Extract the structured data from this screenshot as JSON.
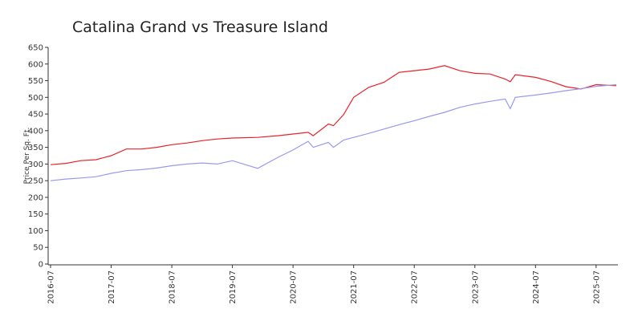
{
  "chart_data": {
    "type": "line",
    "title": "Catalina Grand vs Treasure Island",
    "ylabel": "Price Per Sq. Ft.",
    "x": [
      "2016-07",
      "2016-10",
      "2017-01",
      "2017-04",
      "2017-07",
      "2017-10",
      "2018-01",
      "2018-04",
      "2018-07",
      "2018-10",
      "2019-01",
      "2019-04",
      "2019-07",
      "2019-12",
      "2020-04",
      "2020-07",
      "2020-10",
      "2020-11",
      "2021-02",
      "2021-03",
      "2021-05",
      "2021-07",
      "2021-10",
      "2022-01",
      "2022-04",
      "2022-07",
      "2022-10",
      "2023-01",
      "2023-04",
      "2023-07",
      "2023-10",
      "2024-01",
      "2024-02",
      "2024-03",
      "2024-07",
      "2024-10",
      "2025-01",
      "2025-04",
      "2025-07",
      "2025-11"
    ],
    "series": [
      {
        "color": "#e8222a",
        "values": [
          298,
          302,
          310,
          313,
          325,
          345,
          345,
          350,
          358,
          363,
          370,
          375,
          378,
          380,
          385,
          390,
          395,
          385,
          420,
          415,
          448,
          500,
          530,
          545,
          575,
          580,
          585,
          595,
          580,
          572,
          570,
          555,
          547,
          568,
          560,
          548,
          532,
          525,
          538,
          535
        ]
      },
      {
        "color": "#9999ee",
        "values": [
          250,
          255,
          258,
          262,
          272,
          280,
          283,
          288,
          295,
          300,
          303,
          300,
          310,
          287,
          320,
          342,
          368,
          350,
          365,
          350,
          372,
          380,
          392,
          405,
          418,
          430,
          443,
          455,
          470,
          480,
          488,
          495,
          466,
          500,
          507,
          513,
          520,
          526,
          533,
          538
        ]
      }
    ],
    "xlim": [
      "2016-07",
      "2025-11"
    ],
    "xticks": [
      "2016-07",
      "2017-07",
      "2018-07",
      "2019-07",
      "2020-07",
      "2021-07",
      "2022-07",
      "2023-07",
      "2024-07",
      "2025-07"
    ],
    "ylim": [
      0,
      650
    ],
    "yticks": [
      0,
      50,
      100,
      150,
      200,
      250,
      300,
      350,
      400,
      450,
      500,
      550,
      600,
      650
    ]
  }
}
